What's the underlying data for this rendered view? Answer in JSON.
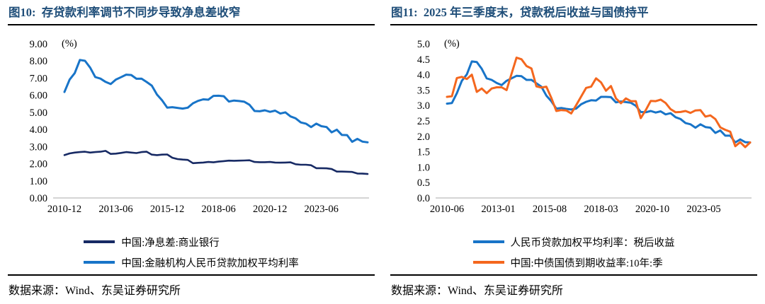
{
  "panels": [
    {
      "title": "图10:  存贷款利率调节不同步导致净息差收窄",
      "source": "数据来源：Wind、东吴证券研究所"
    },
    {
      "title": "图11:  2025 年三季度末，贷款税后收益与国债持平",
      "source": "数据来源：Wind、东吴证券研究所"
    }
  ],
  "colors": {
    "title_blue": "#1F4E79",
    "axis_line_gray": "#C6C6C6",
    "navy_line": "#172A64",
    "blue_line": "#1874C8",
    "orange_line": "#F4671E"
  },
  "chart_data": [
    {
      "type": "line",
      "title": "存贷款利率调节不同步导致净息差收窄",
      "unit_label": "(%)",
      "ylim": [
        0,
        9
      ],
      "ytick_step": 1,
      "ytick_decimals": 2,
      "grid": false,
      "legend_position": "bottom",
      "x_range": "2010-12 to 2025-09, quarterly",
      "x_tick_labels": [
        "2010-12",
        "2013-06",
        "2015-12",
        "2018-06",
        "2020-12",
        "2023-06"
      ],
      "x_tick_indices": [
        0,
        10,
        20,
        30,
        40,
        50
      ],
      "series": [
        {
          "name": "中国:净息差:商业银行",
          "color": "#172A64",
          "width": 2.6,
          "values": [
            2.5,
            2.6,
            2.65,
            2.68,
            2.7,
            2.65,
            2.68,
            2.7,
            2.75,
            2.57,
            2.59,
            2.63,
            2.68,
            2.65,
            2.62,
            2.68,
            2.7,
            2.53,
            2.5,
            2.53,
            2.54,
            2.35,
            2.27,
            2.24,
            2.22,
            2.03,
            2.05,
            2.07,
            2.1,
            2.08,
            2.12,
            2.15,
            2.18,
            2.17,
            2.18,
            2.19,
            2.2,
            2.1,
            2.09,
            2.09,
            2.1,
            2.07,
            2.06,
            2.07,
            2.08,
            1.97,
            1.94,
            1.94,
            1.91,
            1.74,
            1.74,
            1.73,
            1.69,
            1.54,
            1.54,
            1.53,
            1.52,
            1.43,
            1.42,
            1.4
          ]
        },
        {
          "name": "中国:金融机构人民币贷款加权平均利率",
          "color": "#1874C8",
          "width": 3,
          "values": [
            6.19,
            6.91,
            7.29,
            8.06,
            8.01,
            7.61,
            7.06,
            6.97,
            6.78,
            6.65,
            6.91,
            7.05,
            7.2,
            7.18,
            6.96,
            6.97,
            6.77,
            6.56,
            6.04,
            5.7,
            5.27,
            5.3,
            5.26,
            5.22,
            5.27,
            5.53,
            5.67,
            5.76,
            5.74,
            5.96,
            5.97,
            5.94,
            5.63,
            5.69,
            5.66,
            5.62,
            5.44,
            5.08,
            5.06,
            5.12,
            5.03,
            5.1,
            4.93,
            5.0,
            4.76,
            4.65,
            4.41,
            4.34,
            4.14,
            4.34,
            4.19,
            4.14,
            3.83,
            3.99,
            3.68,
            3.67,
            3.28,
            3.45,
            3.29,
            3.25
          ]
        }
      ]
    },
    {
      "type": "line",
      "title": "2025 年三季度末，贷款税后收益与国债持平",
      "unit_label": "(%)",
      "ylim": [
        0,
        5
      ],
      "ytick_step": 0.5,
      "ytick_decimals": 1,
      "grid": false,
      "legend_position": "bottom",
      "x_range": "2010-06 to 2025-09, quarterly",
      "x_tick_labels": [
        "2010-06",
        "2013-01",
        "2015-08",
        "2018-03",
        "2020-10",
        "2023-05"
      ],
      "x_tick_indices": [
        0,
        10.33,
        20.67,
        31,
        41.33,
        51.67
      ],
      "series": [
        {
          "name": "人民币贷款加权平均利率：税后收益",
          "color": "#1874C8",
          "width": 3,
          "values": [
            3.06,
            3.08,
            3.4,
            3.8,
            4.01,
            4.43,
            4.41,
            4.19,
            3.88,
            3.83,
            3.73,
            3.66,
            3.8,
            3.88,
            3.96,
            3.95,
            3.83,
            3.83,
            3.72,
            3.61,
            3.32,
            3.14,
            2.9,
            2.92,
            2.89,
            2.87,
            2.9,
            3.04,
            3.12,
            3.17,
            3.16,
            3.28,
            3.28,
            3.27,
            3.1,
            3.13,
            3.11,
            3.09,
            2.99,
            2.79,
            2.78,
            2.82,
            2.77,
            2.81,
            2.71,
            2.75,
            2.62,
            2.56,
            2.43,
            2.39,
            2.28,
            2.39,
            2.3,
            2.28,
            2.11,
            2.19,
            2.02,
            2.02,
            1.8,
            1.9,
            1.81,
            1.8
          ]
        },
        {
          "name": "中国:中债国债到期收益率:10年:季",
          "color": "#F4671E",
          "width": 3,
          "values": [
            3.28,
            3.3,
            3.89,
            3.93,
            3.86,
            4.0,
            3.44,
            3.55,
            3.4,
            3.55,
            3.59,
            3.59,
            3.5,
            4.03,
            4.55,
            4.5,
            4.28,
            4.2,
            3.62,
            3.58,
            3.61,
            3.25,
            2.82,
            2.85,
            2.84,
            2.74,
            3.01,
            3.29,
            3.57,
            3.61,
            3.88,
            3.75,
            3.48,
            3.63,
            3.23,
            3.07,
            3.23,
            3.14,
            3.14,
            2.59,
            2.85,
            3.15,
            3.14,
            3.19,
            3.08,
            2.88,
            2.78,
            2.79,
            2.82,
            2.76,
            2.84,
            2.85,
            2.64,
            2.68,
            2.56,
            2.29,
            2.21,
            2.15,
            1.68,
            1.81,
            1.65,
            1.8
          ]
        }
      ]
    }
  ]
}
